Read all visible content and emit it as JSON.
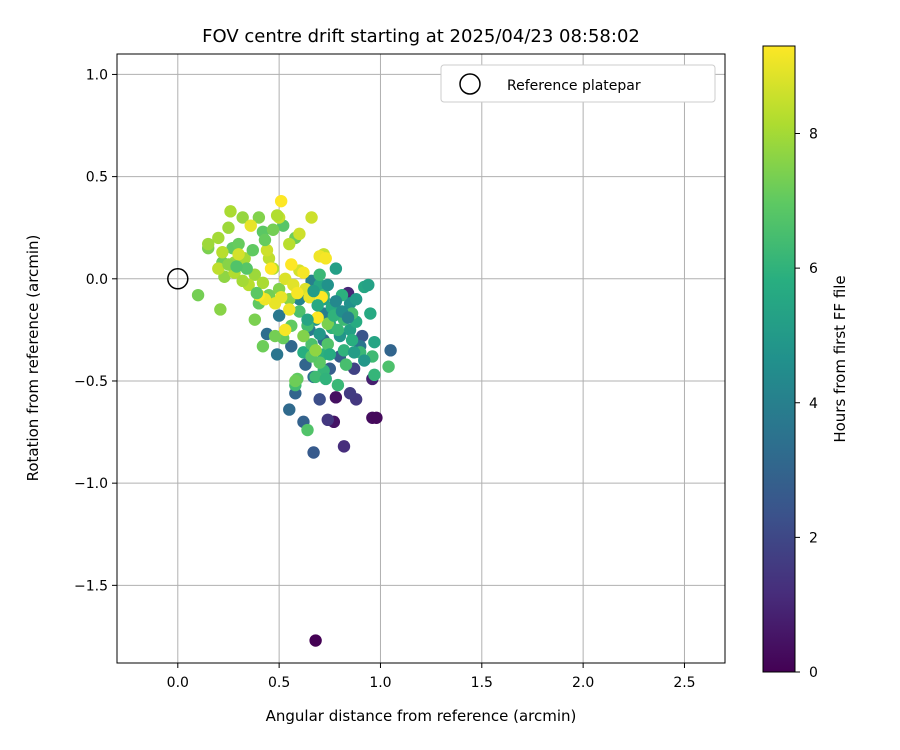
{
  "chart_data": {
    "type": "scatter",
    "title": "FOV centre drift starting at 2025/04/23 08:58:02",
    "xlabel": "Angular distance from reference (arcmin)",
    "ylabel": "Rotation from reference (arcmin)",
    "xlim": [
      -0.3,
      2.7
    ],
    "ylim": [
      -1.88,
      1.1
    ],
    "xticks": [
      "0.0",
      "0.5",
      "1.0",
      "1.5",
      "2.0",
      "2.5"
    ],
    "yticks": [
      "1.0",
      "0.5",
      "0.0",
      "−0.5",
      "−1.0",
      "−1.5"
    ],
    "grid": true,
    "legend": {
      "position": "top-right",
      "entries": [
        "Reference platepar"
      ]
    },
    "reference": {
      "x": 0.0,
      "y": 0.0,
      "marker": "hollow-circle"
    },
    "colorbar": {
      "label": "Hours from first FF file",
      "range": [
        0,
        9.3
      ],
      "ticks": [
        "0",
        "2",
        "4",
        "6",
        "8"
      ],
      "colormap": "viridis"
    },
    "points": [
      [
        0.68,
        -1.77,
        0.0
      ],
      [
        0.96,
        -0.68,
        0.3
      ],
      [
        0.98,
        -0.68,
        0.2
      ],
      [
        0.78,
        -0.58,
        0.4
      ],
      [
        0.77,
        -0.7,
        0.5
      ],
      [
        0.82,
        -0.82,
        1.2
      ],
      [
        0.74,
        -0.69,
        1.5
      ],
      [
        0.88,
        -0.59,
        1.5
      ],
      [
        0.96,
        -0.49,
        0.8
      ],
      [
        0.85,
        -0.56,
        1.6
      ],
      [
        0.87,
        -0.44,
        1.8
      ],
      [
        0.84,
        -0.07,
        1.0
      ],
      [
        0.7,
        -0.59,
        2.2
      ],
      [
        0.67,
        -0.85,
        2.6
      ],
      [
        0.62,
        -0.7,
        2.9
      ],
      [
        0.58,
        -0.56,
        3.0
      ],
      [
        0.55,
        -0.64,
        3.2
      ],
      [
        1.05,
        -0.35,
        3.0
      ],
      [
        0.91,
        -0.28,
        2.4
      ],
      [
        0.75,
        -0.44,
        2.8
      ],
      [
        0.67,
        -0.48,
        3.4
      ],
      [
        0.56,
        -0.33,
        3.1
      ],
      [
        0.49,
        -0.37,
        3.6
      ],
      [
        0.44,
        -0.27,
        3.3
      ],
      [
        0.63,
        -0.42,
        3.0
      ],
      [
        0.72,
        -0.3,
        3.2
      ],
      [
        0.8,
        -0.38,
        2.7
      ],
      [
        0.9,
        -0.33,
        3.6
      ],
      [
        0.65,
        -0.25,
        3.8
      ],
      [
        0.72,
        -0.17,
        3.9
      ],
      [
        0.66,
        -0.01,
        4.0
      ],
      [
        0.5,
        -0.18,
        3.7
      ],
      [
        0.6,
        -0.1,
        4.2
      ],
      [
        0.75,
        -0.22,
        4.4
      ],
      [
        0.85,
        -0.12,
        4.6
      ],
      [
        0.92,
        -0.04,
        5.5
      ],
      [
        0.94,
        -0.03,
        5.3
      ],
      [
        0.78,
        0.05,
        5.2
      ],
      [
        0.88,
        -0.1,
        5.0
      ],
      [
        0.95,
        -0.17,
        5.6
      ],
      [
        0.97,
        -0.31,
        5.4
      ],
      [
        0.85,
        -0.25,
        5.2
      ],
      [
        0.8,
        -0.28,
        4.8
      ],
      [
        0.7,
        -0.27,
        4.9
      ],
      [
        0.68,
        -0.2,
        5.0
      ],
      [
        0.72,
        -0.1,
        5.3
      ],
      [
        0.76,
        -0.14,
        5.6
      ],
      [
        0.7,
        -0.03,
        5.5
      ],
      [
        0.62,
        -0.36,
        5.8
      ],
      [
        0.72,
        -0.37,
        5.9
      ],
      [
        0.82,
        -0.35,
        6.0
      ],
      [
        0.88,
        -0.21,
        5.7
      ],
      [
        0.9,
        -0.36,
        6.2
      ],
      [
        0.96,
        -0.38,
        6.3
      ],
      [
        0.97,
        -0.47,
        6.1
      ],
      [
        0.72,
        -0.45,
        6.1
      ],
      [
        0.58,
        -0.52,
        6.4
      ],
      [
        0.68,
        -0.48,
        6.3
      ],
      [
        0.73,
        -0.49,
        6.0
      ],
      [
        0.79,
        -0.52,
        6.2
      ],
      [
        0.64,
        -0.74,
        6.7
      ],
      [
        1.04,
        -0.43,
        6.6
      ],
      [
        0.86,
        -0.17,
        6.5
      ],
      [
        0.82,
        -0.2,
        6.3
      ],
      [
        0.76,
        -0.24,
        6.0
      ],
      [
        0.66,
        -0.32,
        6.6
      ],
      [
        0.64,
        -0.23,
        6.4
      ],
      [
        0.7,
        0.02,
        6.2
      ],
      [
        0.72,
        -0.08,
        6.4
      ],
      [
        0.6,
        -0.16,
        6.6
      ],
      [
        0.74,
        -0.32,
        6.7
      ],
      [
        0.7,
        -0.41,
        6.9
      ],
      [
        0.66,
        -0.38,
        6.8
      ],
      [
        0.59,
        -0.49,
        7.0
      ],
      [
        0.58,
        -0.5,
        7.2
      ],
      [
        0.56,
        -0.23,
        7.0
      ],
      [
        0.52,
        -0.29,
        7.1
      ],
      [
        0.48,
        -0.28,
        7.3
      ],
      [
        0.42,
        -0.33,
        7.2
      ],
      [
        0.38,
        -0.2,
        7.4
      ],
      [
        0.4,
        -0.12,
        7.0
      ],
      [
        0.45,
        -0.08,
        7.3
      ],
      [
        0.5,
        -0.05,
        7.5
      ],
      [
        0.55,
        -0.1,
        7.6
      ],
      [
        0.62,
        -0.28,
        7.5
      ],
      [
        0.68,
        -0.35,
        7.7
      ],
      [
        0.74,
        -0.22,
        7.4
      ],
      [
        0.1,
        -0.08,
        7.3
      ],
      [
        0.21,
        -0.15,
        7.6
      ],
      [
        0.15,
        0.15,
        7.4
      ],
      [
        0.22,
        0.08,
        7.2
      ],
      [
        0.27,
        0.15,
        7.0
      ],
      [
        0.3,
        0.17,
        7.1
      ],
      [
        0.42,
        0.23,
        6.9
      ],
      [
        0.52,
        0.26,
        6.8
      ],
      [
        0.58,
        0.2,
        7.2
      ],
      [
        0.4,
        0.3,
        7.5
      ],
      [
        0.32,
        0.3,
        7.8
      ],
      [
        0.25,
        0.25,
        7.9
      ],
      [
        0.2,
        0.2,
        8.0
      ],
      [
        0.15,
        0.17,
        7.9
      ],
      [
        0.23,
        0.01,
        7.7
      ],
      [
        0.28,
        0.08,
        7.8
      ],
      [
        0.33,
        0.1,
        8.0
      ],
      [
        0.38,
        0.02,
        7.9
      ],
      [
        0.42,
        -0.02,
        8.1
      ],
      [
        0.47,
        0.05,
        8.2
      ],
      [
        0.35,
        -0.03,
        8.3
      ],
      [
        0.45,
        0.1,
        8.4
      ],
      [
        0.5,
        0.3,
        8.5
      ],
      [
        0.55,
        0.17,
        8.3
      ],
      [
        0.6,
        0.22,
        8.6
      ],
      [
        0.66,
        0.3,
        8.6
      ],
      [
        0.72,
        0.12,
        8.5
      ],
      [
        0.3,
        0.12,
        8.7
      ],
      [
        0.26,
        0.33,
        8.1
      ],
      [
        0.49,
        0.31,
        8.2
      ],
      [
        0.44,
        0.14,
        8.6
      ],
      [
        0.53,
        0.0,
        8.8
      ],
      [
        0.57,
        -0.03,
        8.9
      ],
      [
        0.6,
        0.04,
        8.7
      ],
      [
        0.63,
        -0.05,
        8.8
      ],
      [
        0.48,
        -0.12,
        9.0
      ],
      [
        0.51,
        -0.09,
        9.0
      ],
      [
        0.43,
        -0.1,
        9.1
      ],
      [
        0.55,
        -0.15,
        9.1
      ],
      [
        0.59,
        -0.07,
        9.2
      ],
      [
        0.65,
        -0.09,
        9.0
      ],
      [
        0.7,
        0.11,
        9.1
      ],
      [
        0.73,
        0.1,
        9.2
      ],
      [
        0.62,
        0.03,
        9.2
      ],
      [
        0.56,
        0.07,
        9.3
      ],
      [
        0.51,
        0.38,
        9.3
      ],
      [
        0.46,
        0.05,
        9.3
      ],
      [
        0.4,
        -0.08,
        9.3
      ],
      [
        0.71,
        -0.09,
        9.3
      ],
      [
        0.69,
        -0.19,
        9.3
      ],
      [
        0.53,
        -0.25,
        9.2
      ],
      [
        0.36,
        0.26,
        9.0
      ],
      [
        0.2,
        0.05,
        8.4
      ],
      [
        0.22,
        0.13,
        8.3
      ],
      [
        0.28,
        0.03,
        8.2
      ],
      [
        0.32,
        -0.01,
        8.0
      ],
      [
        0.25,
        0.07,
        7.6
      ],
      [
        0.47,
        0.24,
        7.3
      ],
      [
        0.43,
        0.19,
        7.1
      ],
      [
        0.37,
        0.14,
        7.0
      ],
      [
        0.39,
        -0.07,
        6.9
      ],
      [
        0.34,
        0.05,
        6.8
      ],
      [
        0.29,
        0.06,
        6.7
      ],
      [
        0.77,
        -0.18,
        6.0
      ],
      [
        0.81,
        -0.08,
        5.9
      ],
      [
        0.86,
        -0.3,
        5.8
      ],
      [
        0.83,
        -0.42,
        6.5
      ],
      [
        0.79,
        -0.25,
        6.2
      ],
      [
        0.75,
        -0.37,
        5.7
      ],
      [
        0.69,
        -0.13,
        5.6
      ],
      [
        0.64,
        -0.2,
        5.4
      ],
      [
        0.67,
        -0.06,
        5.1
      ],
      [
        0.74,
        -0.03,
        4.7
      ],
      [
        0.78,
        -0.11,
        4.3
      ],
      [
        0.81,
        -0.16,
        4.5
      ],
      [
        0.84,
        -0.19,
        4.1
      ],
      [
        0.87,
        -0.36,
        5.1
      ],
      [
        0.92,
        -0.4,
        4.9
      ]
    ]
  }
}
